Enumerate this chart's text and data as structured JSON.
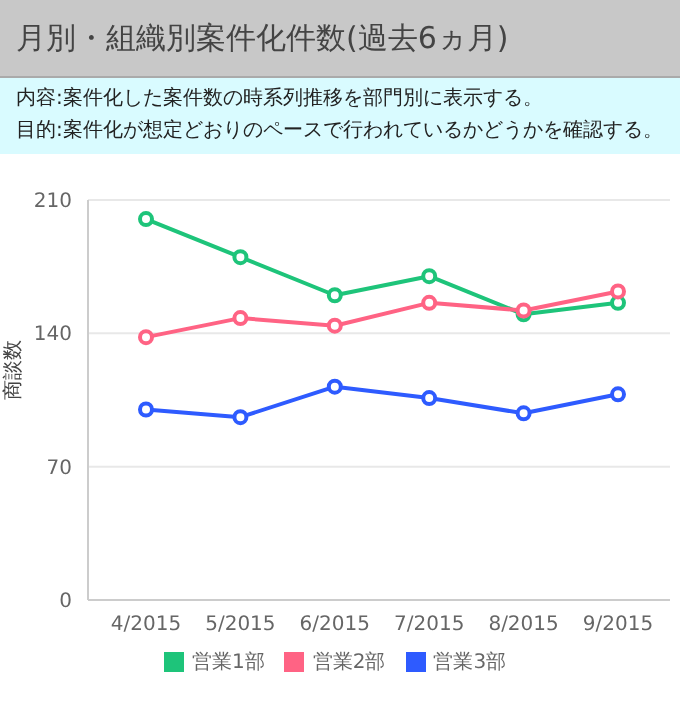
{
  "chart_data": {
    "type": "line",
    "title": "月別・組織別案件化件数(過去6ヵ月)",
    "subtitle": "内容:案件化した案件数の時系列推移を部門別に表示する。",
    "annotations": [
      "目的:案件化が想定どおりのペースで行われているかどうかを確認する。"
    ],
    "ylabel": "商談数",
    "categories": [
      "4/2015",
      "5/2015",
      "6/2015",
      "7/2015",
      "8/2015",
      "9/2015"
    ],
    "series": [
      {
        "name": "営業1部",
        "color": "#1ec47a",
        "values": [
          200,
          180,
          160,
          170,
          150,
          156
        ]
      },
      {
        "name": "営業2部",
        "color": "#ff6384",
        "values": [
          138,
          148,
          144,
          156,
          152,
          162
        ]
      },
      {
        "name": "営業3部",
        "color": "#2e5bff",
        "values": [
          100,
          96,
          112,
          106,
          98,
          108
        ]
      }
    ],
    "ylim": [
      0,
      210
    ],
    "yticks": [
      0,
      70,
      140,
      210
    ],
    "grid": "y",
    "legend": "bottom",
    "marker": "circle",
    "line_style": "solid"
  }
}
